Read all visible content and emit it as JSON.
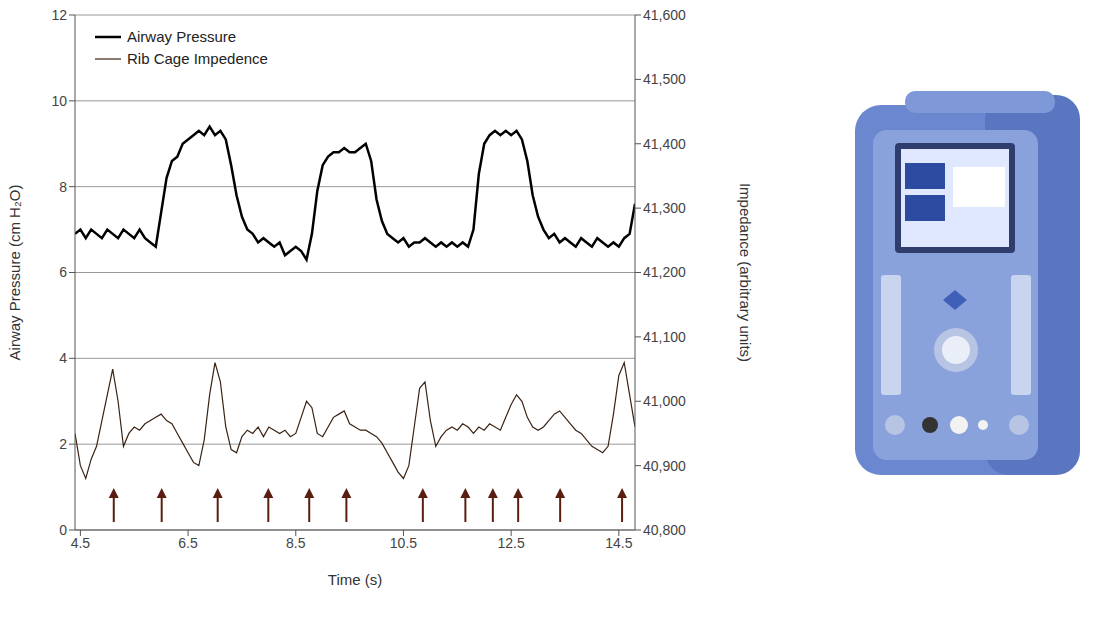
{
  "chart_data": {
    "type": "line",
    "x_label": "Time (s)",
    "y_label": "Airway Pressure (cm H₂O)",
    "y2_label": "Impedance (arbitrary units)",
    "x": [
      4.4,
      4.5,
      4.6,
      4.7,
      4.8,
      4.9,
      5.0,
      5.1,
      5.2,
      5.3,
      5.4,
      5.5,
      5.6,
      5.7,
      5.8,
      5.9,
      6.0,
      6.1,
      6.2,
      6.3,
      6.4,
      6.5,
      6.6,
      6.7,
      6.8,
      6.9,
      7.0,
      7.1,
      7.2,
      7.3,
      7.4,
      7.5,
      7.6,
      7.7,
      7.8,
      7.9,
      8.0,
      8.1,
      8.2,
      8.3,
      8.4,
      8.5,
      8.6,
      8.7,
      8.8,
      8.9,
      9.0,
      9.1,
      9.2,
      9.3,
      9.4,
      9.5,
      9.6,
      9.7,
      9.8,
      9.9,
      10.0,
      10.1,
      10.2,
      10.3,
      10.4,
      10.5,
      10.6,
      10.7,
      10.8,
      10.9,
      11.0,
      11.1,
      11.2,
      11.3,
      11.4,
      11.5,
      11.6,
      11.7,
      11.8,
      11.9,
      12.0,
      12.1,
      12.2,
      12.3,
      12.4,
      12.5,
      12.6,
      12.7,
      12.8,
      12.9,
      13.0,
      13.1,
      13.2,
      13.3,
      13.4,
      13.5,
      13.6,
      13.7,
      13.8,
      13.9,
      14.0,
      14.1,
      14.2,
      14.3,
      14.4,
      14.5,
      14.6,
      14.7,
      14.8
    ],
    "series": [
      {
        "name": "Airway Pressure",
        "color": "#000000",
        "values": [
          6.9,
          7.0,
          6.8,
          7.0,
          6.9,
          6.8,
          7.0,
          6.9,
          6.8,
          7.0,
          6.9,
          6.8,
          7.0,
          6.8,
          6.7,
          6.6,
          7.4,
          8.2,
          8.6,
          8.7,
          9.0,
          9.1,
          9.2,
          9.3,
          9.2,
          9.4,
          9.2,
          9.3,
          9.1,
          8.5,
          7.8,
          7.3,
          7.0,
          6.9,
          6.7,
          6.8,
          6.7,
          6.6,
          6.7,
          6.4,
          6.5,
          6.6,
          6.5,
          6.3,
          6.9,
          7.9,
          8.5,
          8.7,
          8.8,
          8.8,
          8.9,
          8.8,
          8.8,
          8.9,
          9.0,
          8.6,
          7.7,
          7.2,
          6.9,
          6.8,
          6.7,
          6.8,
          6.6,
          6.7,
          6.7,
          6.8,
          6.7,
          6.6,
          6.7,
          6.6,
          6.7,
          6.6,
          6.7,
          6.6,
          7.0,
          8.3,
          9.0,
          9.2,
          9.3,
          9.2,
          9.3,
          9.2,
          9.3,
          9.1,
          8.6,
          7.8,
          7.3,
          7.0,
          6.8,
          6.9,
          6.7,
          6.8,
          6.7,
          6.6,
          6.8,
          6.7,
          6.6,
          6.8,
          6.7,
          6.6,
          6.7,
          6.6,
          6.8,
          6.9,
          7.6
        ]
      },
      {
        "name": "Rib Cage Impedence",
        "color": "#3b2314",
        "axis": "y2",
        "values": [
          40950,
          40900,
          40880,
          40910,
          40930,
          40970,
          41010,
          41050,
          41000,
          40930,
          40950,
          40960,
          40955,
          40965,
          40970,
          40975,
          40980,
          40970,
          40965,
          40950,
          40935,
          40920,
          40905,
          40900,
          40940,
          41010,
          41060,
          41030,
          40960,
          40925,
          40920,
          40945,
          40955,
          40950,
          40960,
          40945,
          40960,
          40955,
          40950,
          40955,
          40945,
          40950,
          40975,
          41000,
          40990,
          40950,
          40945,
          40960,
          40975,
          40980,
          40985,
          40965,
          40960,
          40955,
          40955,
          40950,
          40945,
          40935,
          40920,
          40905,
          40890,
          40880,
          40900,
          40960,
          41020,
          41030,
          40970,
          40930,
          40945,
          40955,
          40960,
          40955,
          40965,
          40960,
          40950,
          40960,
          40955,
          40965,
          40960,
          40955,
          40975,
          40995,
          41010,
          41000,
          40975,
          40960,
          40955,
          40960,
          40970,
          40980,
          40985,
          40975,
          40965,
          40955,
          40950,
          40940,
          40930,
          40925,
          40920,
          40930,
          40980,
          41040,
          41060,
          41010,
          40960
        ]
      }
    ],
    "arrows": [
      5.12,
      6.01,
      7.05,
      7.99,
      8.75,
      9.44,
      10.86,
      11.65,
      12.16,
      12.63,
      13.41,
      14.56
    ],
    "xlim": [
      4.4,
      14.8
    ],
    "xticks": [
      4.5,
      6.5,
      8.5,
      10.5,
      12.5,
      14.5
    ],
    "ylim": [
      0,
      12
    ],
    "yticks": [
      0,
      2,
      4,
      6,
      8,
      10,
      12
    ],
    "y2lim": [
      40800,
      41600
    ],
    "y2ticks": [
      {
        "value": 40800,
        "label": "40,800"
      },
      {
        "value": 40900,
        "label": "40,900"
      },
      {
        "value": 41000,
        "label": "41,000"
      },
      {
        "value": 41100,
        "label": "41,100"
      },
      {
        "value": 41200,
        "label": "41,200"
      },
      {
        "value": 41300,
        "label": "41,300"
      },
      {
        "value": 41400,
        "label": "41,400"
      },
      {
        "value": 41500,
        "label": "41,500"
      },
      {
        "value": 41600,
        "label": "41,600"
      }
    ],
    "grid": true,
    "legend": "upper left"
  }
}
